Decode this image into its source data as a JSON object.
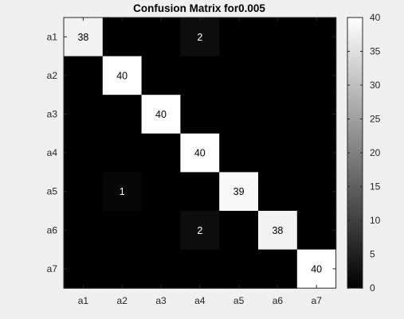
{
  "chart_data": {
    "type": "heatmap",
    "title": "Confusion Matrix for0.005",
    "xlabel": "",
    "ylabel": "",
    "x_categories": [
      "a1",
      "a2",
      "a3",
      "a4",
      "a5",
      "a6",
      "a7"
    ],
    "y_categories": [
      "a1",
      "a2",
      "a3",
      "a4",
      "a5",
      "a6",
      "a7"
    ],
    "values": [
      [
        38,
        0,
        0,
        2,
        0,
        0,
        0
      ],
      [
        0,
        40,
        0,
        0,
        0,
        0,
        0
      ],
      [
        0,
        0,
        40,
        0,
        0,
        0,
        0
      ],
      [
        0,
        0,
        0,
        40,
        0,
        0,
        0
      ],
      [
        0,
        1,
        0,
        0,
        39,
        0,
        0
      ],
      [
        0,
        0,
        0,
        2,
        0,
        38,
        0
      ],
      [
        0,
        0,
        0,
        0,
        0,
        0,
        40
      ]
    ],
    "show_zero_labels": false,
    "colormap": "gray",
    "clim": [
      0,
      40
    ],
    "colorbar": {
      "ticks": [
        0,
        5,
        10,
        15,
        20,
        25,
        30,
        35,
        40
      ],
      "placement": "right"
    },
    "colors": {
      "background": "#f0f0f0",
      "low": "#000000",
      "high": "#ffffff",
      "text_on_dark": "#ffffff",
      "text_on_light": "#000000",
      "axis": "#262626"
    }
  }
}
